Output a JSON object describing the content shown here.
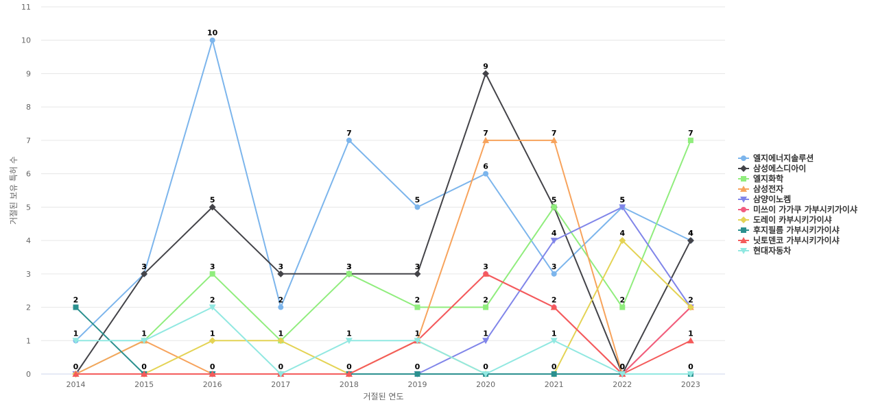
{
  "chart_data": {
    "type": "line",
    "title": "",
    "xlabel": "거절된 연도",
    "ylabel": "거절된 보유 특허 수",
    "x": [
      "2014",
      "2015",
      "2016",
      "2017",
      "2018",
      "2019",
      "2020",
      "2021",
      "2022",
      "2023"
    ],
    "ylim": [
      0,
      11
    ],
    "yticks": [
      0,
      1,
      2,
      3,
      4,
      5,
      6,
      7,
      8,
      9,
      10,
      11
    ],
    "grid": true,
    "legend_position": "right",
    "series": [
      {
        "name": "엘지에너지솔루션",
        "color": "#7cb5ec",
        "marker": "circle",
        "values": [
          1,
          3,
          10,
          2,
          7,
          5,
          6,
          3,
          5,
          4
        ],
        "labels": [
          true,
          true,
          true,
          true,
          true,
          true,
          true,
          true,
          true,
          true
        ]
      },
      {
        "name": "삼성에스디아이",
        "color": "#434348",
        "marker": "diamond",
        "values": [
          0,
          3,
          5,
          3,
          3,
          3,
          9,
          5,
          0,
          4
        ],
        "labels": [
          true,
          true,
          true,
          true,
          true,
          true,
          true,
          true,
          true,
          true
        ]
      },
      {
        "name": "엘지화학",
        "color": "#90ed7d",
        "marker": "square",
        "values": [
          0,
          1,
          3,
          1,
          3,
          2,
          2,
          5,
          2,
          7
        ],
        "labels": [
          false,
          true,
          true,
          true,
          true,
          true,
          true,
          false,
          true,
          true
        ]
      },
      {
        "name": "삼성전자",
        "color": "#f7a35c",
        "marker": "triangle",
        "values": [
          0,
          1,
          0,
          0,
          0,
          1,
          7,
          7,
          0,
          2
        ],
        "labels": [
          false,
          false,
          false,
          false,
          false,
          false,
          true,
          true,
          false,
          false
        ]
      },
      {
        "name": "삼양이노켐",
        "color": "#8085e9",
        "marker": "triangle-down",
        "values": [
          0,
          0,
          0,
          0,
          0,
          0,
          1,
          4,
          5,
          2
        ],
        "labels": [
          false,
          false,
          false,
          false,
          false,
          false,
          true,
          true,
          true,
          true
        ]
      },
      {
        "name": "미쓰이 가가쿠 가부시키가이샤",
        "color": "#f15c80",
        "marker": "circle",
        "values": [
          0,
          0,
          0,
          0,
          0,
          1,
          3,
          2,
          0,
          2
        ],
        "labels": [
          false,
          false,
          false,
          false,
          false,
          false,
          false,
          false,
          false,
          false
        ]
      },
      {
        "name": "도레이 카부시키가이샤",
        "color": "#e4d354",
        "marker": "diamond",
        "values": [
          0,
          0,
          1,
          1,
          0,
          1,
          0,
          0,
          4,
          2
        ],
        "labels": [
          false,
          false,
          true,
          false,
          false,
          false,
          false,
          false,
          true,
          false
        ]
      },
      {
        "name": "후지필름 가부시키가이샤",
        "color": "#2b908f",
        "marker": "square",
        "values": [
          2,
          0,
          0,
          0,
          0,
          0,
          0,
          0,
          0,
          0
        ],
        "labels": [
          true,
          true,
          true,
          true,
          true,
          true,
          true,
          true,
          true,
          true
        ]
      },
      {
        "name": "닛토덴코 가부시키가이샤",
        "color": "#f45b5b",
        "marker": "triangle",
        "values": [
          0,
          0,
          0,
          0,
          0,
          1,
          3,
          2,
          0,
          1
        ],
        "labels": [
          false,
          false,
          false,
          false,
          false,
          true,
          true,
          true,
          false,
          true
        ]
      },
      {
        "name": "현대자동차",
        "color": "#91e8e1",
        "marker": "triangle-down",
        "values": [
          1,
          1,
          2,
          0,
          1,
          1,
          0,
          1,
          0,
          0
        ],
        "labels": [
          false,
          false,
          true,
          false,
          true,
          false,
          false,
          true,
          false,
          false
        ]
      }
    ]
  }
}
